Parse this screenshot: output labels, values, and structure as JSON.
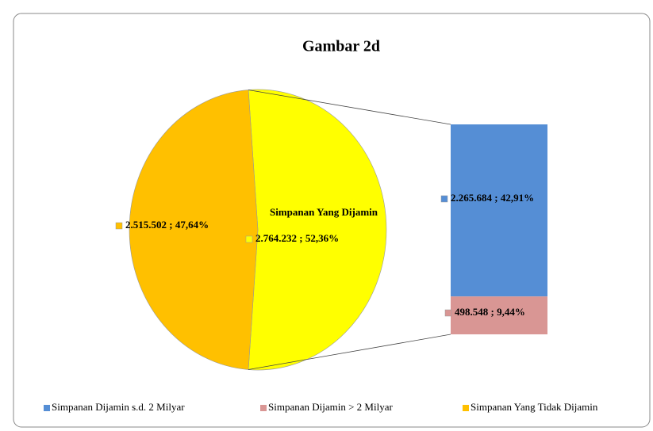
{
  "chart_data": {
    "type": "pie",
    "title": "Gambar 2d",
    "categories": [
      "Simpanan Yang Tidak Dijamin",
      "Simpanan Yang Dijamin"
    ],
    "values": [
      2515502,
      2764232
    ],
    "value_labels": [
      "2.515.502 ; 47,64%",
      "2.764.232 ; 52,36%"
    ],
    "colors": [
      "#ffc000",
      "#ffff00"
    ],
    "breakdown": {
      "categories": [
        "Simpanan Dijamin s.d. 2 Milyar",
        "Simpanan Dijamin > 2 Milyar"
      ],
      "values": [
        2265684,
        498548
      ],
      "value_labels": [
        "2.265.684 ; 42,91%",
        "498.548 ; 9,44%"
      ],
      "colors": [
        "#558ed5",
        "#d99694"
      ]
    },
    "legend": "bottom"
  }
}
